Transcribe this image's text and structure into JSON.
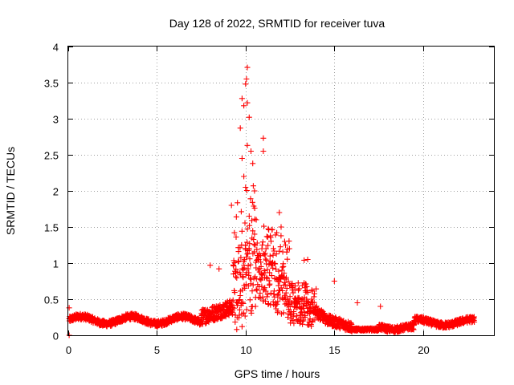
{
  "chart_data": {
    "type": "scatter",
    "title": "Day 128 of 2022, SRMTID for receiver tuva",
    "xlabel": "GPS time / hours",
    "ylabel": "SRMTID / TECUs",
    "xlim": [
      0,
      24
    ],
    "ylim": [
      0,
      4
    ],
    "x_ticks": [
      0,
      5,
      10,
      15,
      20
    ],
    "y_ticks": [
      0,
      0.5,
      1,
      1.5,
      2,
      2.5,
      3,
      3.5,
      4
    ],
    "x_tick_labels": [
      "0",
      "5",
      "10",
      "15",
      "20"
    ],
    "y_tick_labels": [
      "0",
      "0.5",
      "1",
      "1.5",
      "2",
      "2.5",
      "3",
      "3.5",
      "4"
    ],
    "grid": true,
    "marker": "+",
    "series": [
      {
        "name": "SRMTID",
        "color": "#ff0000",
        "peaks": [
          {
            "x": 9.7,
            "y": 2.87
          },
          {
            "x": 9.8,
            "y": 3.28
          },
          {
            "x": 9.9,
            "y": 3.18
          },
          {
            "x": 10.05,
            "y": 3.55
          },
          {
            "x": 10.1,
            "y": 3.71
          },
          {
            "x": 10.0,
            "y": 3.48
          },
          {
            "x": 10.1,
            "y": 3.22
          },
          {
            "x": 10.2,
            "y": 3.02
          },
          {
            "x": 10.1,
            "y": 2.63
          },
          {
            "x": 10.3,
            "y": 2.55
          },
          {
            "x": 10.4,
            "y": 2.38
          },
          {
            "x": 9.8,
            "y": 2.45
          },
          {
            "x": 9.9,
            "y": 2.2
          },
          {
            "x": 10.0,
            "y": 2.05
          },
          {
            "x": 10.5,
            "y": 2.0
          },
          {
            "x": 11.0,
            "y": 2.73
          },
          {
            "x": 11.0,
            "y": 2.55
          },
          {
            "x": 9.2,
            "y": 1.8
          },
          {
            "x": 10.2,
            "y": 1.65
          },
          {
            "x": 10.6,
            "y": 1.6
          },
          {
            "x": 11.9,
            "y": 1.7
          },
          {
            "x": 12.0,
            "y": 1.5
          },
          {
            "x": 12.2,
            "y": 1.3
          },
          {
            "x": 8.0,
            "y": 0.97
          },
          {
            "x": 8.5,
            "y": 0.92
          },
          {
            "x": 13.3,
            "y": 1.04
          },
          {
            "x": 13.5,
            "y": 1.05
          },
          {
            "x": 15.0,
            "y": 0.75
          },
          {
            "x": 16.3,
            "y": 0.45
          },
          {
            "x": 17.6,
            "y": 0.4
          },
          {
            "x": 0.05,
            "y": 0.38
          },
          {
            "x": 0.05,
            "y": 0.0
          },
          {
            "x": 9.5,
            "y": 0.08
          },
          {
            "x": 9.8,
            "y": 0.12
          }
        ]
      }
    ]
  }
}
